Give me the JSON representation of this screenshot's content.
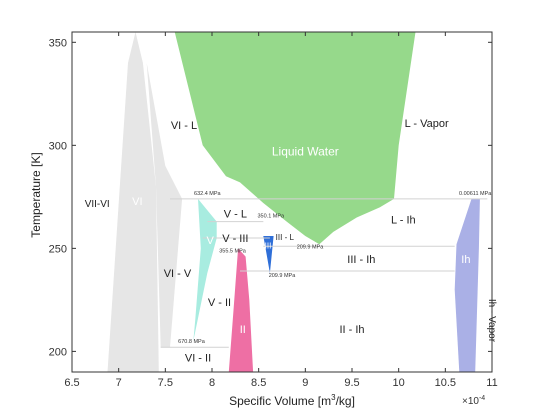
{
  "chart_data": {
    "type": "area",
    "title": "",
    "xlabel_main": "Specific Volume [m",
    "xlabel_sup": "3",
    "xlabel_tail": "/kg]",
    "ylabel": "Temperature [K]",
    "x_multiplier": "×10",
    "x_multiplier_exp": "-4",
    "xlim": [
      6.5,
      11.0
    ],
    "ylim": [
      190,
      355
    ],
    "x_ticks": [
      {
        "v": 6.5,
        "label": "6.5"
      },
      {
        "v": 7.0,
        "label": "7"
      },
      {
        "v": 7.5,
        "label": "7.5"
      },
      {
        "v": 8.0,
        "label": "8"
      },
      {
        "v": 8.5,
        "label": "8.5"
      },
      {
        "v": 9.0,
        "label": "9"
      },
      {
        "v": 9.5,
        "label": "9.5"
      },
      {
        "v": 10.0,
        "label": "10"
      },
      {
        "v": 10.5,
        "label": "10.5"
      },
      {
        "v": 11.0,
        "label": "11"
      }
    ],
    "y_ticks": [
      {
        "v": 200,
        "label": "200"
      },
      {
        "v": 250,
        "label": "250"
      },
      {
        "v": 300,
        "label": "300"
      },
      {
        "v": 350,
        "label": "350"
      }
    ],
    "grid": false,
    "colors": {
      "liquid": "#96d98b",
      "ice_vii": "#e6e6e6",
      "ice_vi": "#e6e6e6",
      "ice_v": "#a8ece0",
      "ice_iii": "#2f6fd8",
      "ice_ii": "#ee6fa4",
      "ice_ih": "#aab0e6",
      "tie_line": "#d2d2d2",
      "axis": "#333333",
      "text": "#222222"
    },
    "regions": [
      {
        "name": "Liquid Water",
        "color_key": "liquid",
        "points": [
          [
            8.95,
            355
          ],
          [
            8.45,
            355
          ],
          [
            7.95,
            355
          ],
          [
            7.6,
            355
          ],
          [
            7.9,
            300
          ],
          [
            8.15,
            285
          ],
          [
            8.3,
            282
          ],
          [
            8.55,
            272
          ],
          [
            8.8,
            263
          ],
          [
            9.0,
            256
          ],
          [
            9.15,
            252
          ],
          [
            9.3,
            258
          ],
          [
            9.55,
            265
          ],
          [
            9.8,
            270
          ],
          [
            9.95,
            274
          ],
          [
            10.0,
            300
          ],
          [
            10.18,
            355
          ],
          [
            10.18,
            355
          ]
        ]
      },
      {
        "name": "VII",
        "color_key": "ice_vii",
        "points": [
          [
            6.88,
            190
          ],
          [
            7.1,
            340
          ],
          [
            7.18,
            355
          ],
          [
            7.26,
            340
          ],
          [
            7.4,
            280
          ],
          [
            7.43,
            190
          ]
        ]
      },
      {
        "name": "VI",
        "color_key": "ice_vi",
        "points": [
          [
            7.3,
            340
          ],
          [
            7.5,
            290
          ],
          [
            7.68,
            274
          ],
          [
            7.55,
            202
          ],
          [
            7.45,
            202
          ],
          [
            7.4,
            280
          ]
        ]
      },
      {
        "name": "V",
        "color_key": "ice_v",
        "points": [
          [
            7.85,
            274
          ],
          [
            7.88,
            250
          ],
          [
            7.82,
            215
          ],
          [
            7.8,
            205
          ],
          [
            7.95,
            238
          ],
          [
            8.05,
            255
          ],
          [
            8.05,
            263
          ]
        ]
      },
      {
        "name": "III",
        "color_key": "ice_iii",
        "points": [
          [
            8.55,
            256
          ],
          [
            8.57,
            251
          ],
          [
            8.62,
            238
          ],
          [
            8.66,
            256
          ]
        ]
      },
      {
        "name": "II",
        "color_key": "ice_ii",
        "points": [
          [
            8.18,
            190
          ],
          [
            8.23,
            220
          ],
          [
            8.28,
            250
          ],
          [
            8.36,
            246
          ],
          [
            8.4,
            225
          ],
          [
            8.44,
            190
          ]
        ]
      },
      {
        "name": "Ih",
        "color_key": "ice_ih",
        "points": [
          [
            10.65,
            190
          ],
          [
            10.6,
            230
          ],
          [
            10.62,
            252
          ],
          [
            10.78,
            274
          ],
          [
            10.87,
            274
          ],
          [
            10.86,
            250
          ],
          [
            10.82,
            190
          ]
        ]
      }
    ],
    "tie_lines": [
      {
        "x": [
          7.55,
          10.95
        ],
        "y": [
          274,
          274
        ]
      },
      {
        "x": [
          7.95,
          8.55
        ],
        "y": [
          263,
          263
        ]
      },
      {
        "x": [
          7.9,
          8.62
        ],
        "y": [
          255,
          255
        ]
      },
      {
        "x": [
          8.55,
          10.6
        ],
        "y": [
          251,
          251
        ]
      },
      {
        "x": [
          8.3,
          10.6
        ],
        "y": [
          239,
          239
        ]
      },
      {
        "x": [
          7.45,
          8.18
        ],
        "y": [
          202,
          202
        ]
      }
    ],
    "region_labels": [
      {
        "text": "VII-VI",
        "x": 6.77,
        "y": 270,
        "color": "text",
        "size": 10
      },
      {
        "text": "VI",
        "x": 7.2,
        "y": 271,
        "color": "white",
        "size": 11
      },
      {
        "text": "VI - L",
        "x": 7.7,
        "y": 308,
        "color": "text",
        "size": 11
      },
      {
        "text": "Liquid Water",
        "x": 9.0,
        "y": 295,
        "color": "white",
        "size": 12
      },
      {
        "text": "L - Vapor",
        "x": 10.3,
        "y": 309,
        "color": "text",
        "size": 11
      },
      {
        "text": "V - L",
        "x": 8.25,
        "y": 265,
        "color": "text",
        "size": 11
      },
      {
        "text": "V",
        "x": 7.98,
        "y": 252,
        "color": "white",
        "size": 11
      },
      {
        "text": "V - III",
        "x": 8.25,
        "y": 253,
        "color": "text",
        "size": 11
      },
      {
        "text": "III",
        "x": 8.6,
        "y": 250,
        "color": "white",
        "size": 8
      },
      {
        "text": "III - L",
        "x": 8.78,
        "y": 254,
        "color": "text",
        "size": 8
      },
      {
        "text": "L - Ih",
        "x": 10.05,
        "y": 262,
        "color": "text",
        "size": 11
      },
      {
        "text": "III - Ih",
        "x": 9.6,
        "y": 243,
        "color": "text",
        "size": 11
      },
      {
        "text": "Ih",
        "x": 10.72,
        "y": 243,
        "color": "white",
        "size": 11
      },
      {
        "text": "VI - V",
        "x": 7.63,
        "y": 236,
        "color": "text",
        "size": 11
      },
      {
        "text": "V - II",
        "x": 8.08,
        "y": 222,
        "color": "text",
        "size": 11
      },
      {
        "text": "II",
        "x": 8.33,
        "y": 209,
        "color": "white",
        "size": 11
      },
      {
        "text": "II - Ih",
        "x": 9.5,
        "y": 209,
        "color": "text",
        "size": 11
      },
      {
        "text": "VI - II",
        "x": 7.85,
        "y": 195,
        "color": "text",
        "size": 11
      },
      {
        "text": "Ih - Vapor",
        "x": 10.97,
        "y": 215,
        "color": "text",
        "size": 10,
        "rotate": 90
      }
    ],
    "annotations": [
      {
        "text": "632.4 MPa",
        "x": 7.95,
        "y": 276
      },
      {
        "text": "350.1 MPa",
        "x": 8.63,
        "y": 265
      },
      {
        "text": "355.5 MPa",
        "x": 8.22,
        "y": 248
      },
      {
        "text": "209.9 MPa",
        "x": 9.05,
        "y": 250
      },
      {
        "text": "209.9 MPa",
        "x": 8.75,
        "y": 236
      },
      {
        "text": "0.00611 MPa",
        "x": 10.82,
        "y": 276
      },
      {
        "text": "670.8 MPa",
        "x": 7.78,
        "y": 204
      }
    ]
  }
}
